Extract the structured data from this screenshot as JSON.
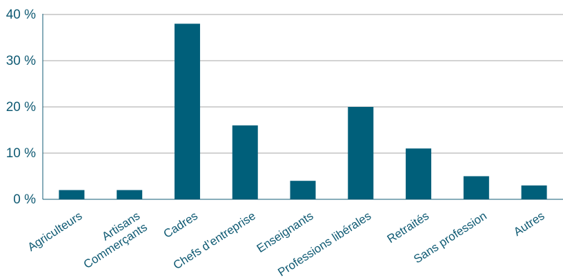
{
  "chart_data": {
    "type": "bar",
    "categories": [
      [
        "Agriculteurs"
      ],
      [
        "Artisans",
        "Commerçants"
      ],
      [
        "Cadres"
      ],
      [
        "Chefs d’entreprise"
      ],
      [
        "Enseignants"
      ],
      [
        "Professions libérales"
      ],
      [
        "Retraités"
      ],
      [
        "Sans profession"
      ],
      [
        "Autres"
      ]
    ],
    "values": [
      2,
      2,
      38,
      16,
      4,
      20,
      11,
      5,
      3
    ],
    "yticks": [
      0,
      10,
      20,
      30,
      40
    ],
    "ytick_labels": [
      "0 %",
      "10 %",
      "20 %",
      "30 %",
      "40 %"
    ],
    "ylim": [
      0,
      40
    ],
    "grid": true,
    "colors": {
      "bar": "#005f7a",
      "grid": "#a6a6a6",
      "axis": "#0f5a73",
      "text": "#0f5a73"
    }
  }
}
